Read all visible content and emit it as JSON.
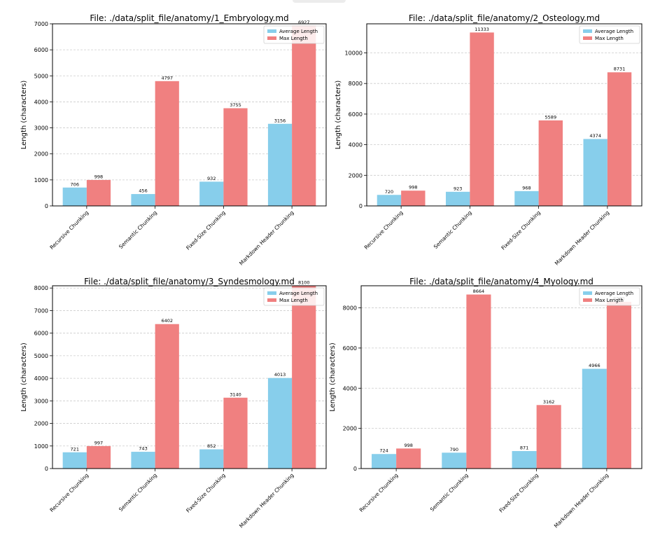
{
  "colors": {
    "average": "#87ceeb",
    "max": "#f08080",
    "grid": "#cccccc"
  },
  "legend": {
    "average_label": "Average Length",
    "max_label": "Max Length"
  },
  "chart_data": [
    {
      "type": "bar",
      "title": "File: ./data/split_file/anatomy/1_Embryology.md",
      "ylabel": "Length (characters)",
      "xlabel": "",
      "categories": [
        "Recursive Chunking",
        "Semantic Chunking",
        "Fixed-Size Chunking",
        "Markdown Header Chunking"
      ],
      "series": [
        {
          "name": "Average Length",
          "values": [
            706,
            456,
            932,
            3156
          ]
        },
        {
          "name": "Max Length",
          "values": [
            998,
            4797,
            3755,
            6927
          ]
        }
      ],
      "data_labels": [
        [
          "706",
          "456",
          "932",
          "3156"
        ],
        [
          "998",
          "4797",
          "3755",
          "6927"
        ]
      ],
      "yticks": [
        0,
        1000,
        2000,
        3000,
        4000,
        5000,
        6000,
        7000
      ],
      "ylim": [
        0,
        7000
      ],
      "grid": "y-dashed",
      "legend_position": "top-right"
    },
    {
      "type": "bar",
      "title": "File: ./data/split_file/anatomy/2_Osteology.md",
      "ylabel": "Length (characters)",
      "xlabel": "",
      "categories": [
        "Recursive Chunking",
        "Semantic Chunking",
        "Fixed-Size Chunking",
        "Markdown Header Chunking"
      ],
      "series": [
        {
          "name": "Average Length",
          "values": [
            720,
            923,
            968,
            4374
          ]
        },
        {
          "name": "Max Length",
          "values": [
            998,
            11333,
            5589,
            8731
          ]
        }
      ],
      "data_labels": [
        [
          "720",
          "923",
          "968",
          "4374"
        ],
        [
          "998",
          "11333",
          "5589",
          "8731"
        ]
      ],
      "yticks": [
        0,
        2000,
        4000,
        6000,
        8000,
        10000
      ],
      "ylim": [
        0,
        11900
      ],
      "grid": "y-dashed",
      "legend_position": "top-right"
    },
    {
      "type": "bar",
      "title": "File: ./data/split_file/anatomy/3_Syndesmology.md",
      "ylabel": "Length (characters)",
      "xlabel": "",
      "categories": [
        "Recursive Chunking",
        "Semantic Chunking",
        "Fixed-Size Chunking",
        "Markdown Header Chunking"
      ],
      "series": [
        {
          "name": "Average Length",
          "values": [
            721,
            743,
            852,
            4013
          ]
        },
        {
          "name": "Max Length",
          "values": [
            997,
            6402,
            3140,
            8100
          ]
        }
      ],
      "data_labels": [
        [
          "721",
          "743",
          "852",
          "4013"
        ],
        [
          "997",
          "6402",
          "3140",
          "8100"
        ]
      ],
      "yticks": [
        0,
        1000,
        2000,
        3000,
        4000,
        5000,
        6000,
        7000,
        8000
      ],
      "ylim": [
        0,
        8100
      ],
      "grid": "y-dashed",
      "legend_position": "top-right"
    },
    {
      "type": "bar",
      "title": "File: ./data/split_file/anatomy/4_Myology.md",
      "ylabel": "Length (characters)",
      "xlabel": "",
      "categories": [
        "Recursive Chunking",
        "Semantic Chunking",
        "Fixed-Size Chunking",
        "Markdown Header Chunking"
      ],
      "series": [
        {
          "name": "Average Length",
          "values": [
            724,
            790,
            871,
            4966
          ]
        },
        {
          "name": "Max Length",
          "values": [
            998,
            8664,
            3162,
            8300
          ]
        }
      ],
      "data_labels": [
        [
          "724",
          "790",
          "871",
          "4966"
        ],
        [
          "998",
          "8664",
          "3162",
          "8300"
        ]
      ],
      "yticks": [
        0,
        2000,
        4000,
        6000,
        8000
      ],
      "ylim": [
        0,
        9100
      ],
      "grid": "y-dashed",
      "legend_position": "top-right"
    }
  ]
}
